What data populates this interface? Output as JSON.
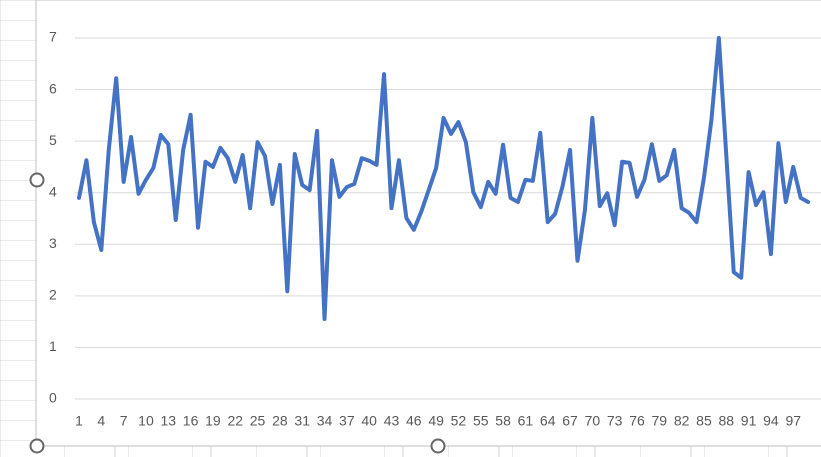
{
  "chart_data": {
    "type": "line",
    "categories": [
      "1",
      null,
      null,
      "4",
      null,
      null,
      "7",
      null,
      null,
      "10",
      null,
      null,
      "13",
      null,
      null,
      "16",
      null,
      null,
      "19",
      null,
      null,
      "22",
      null,
      null,
      "25",
      null,
      null,
      "28",
      null,
      null,
      "31",
      null,
      null,
      "34",
      null,
      null,
      "37",
      null,
      null,
      "40",
      null,
      null,
      "43",
      null,
      null,
      "46",
      null,
      null,
      "49",
      null,
      null,
      "52",
      null,
      null,
      "55",
      null,
      null,
      "58",
      null,
      null,
      "61",
      null,
      null,
      "64",
      null,
      null,
      "67",
      null,
      null,
      "70",
      null,
      null,
      "73",
      null,
      null,
      "76",
      null,
      null,
      "79",
      null,
      null,
      "82",
      null,
      null,
      "85",
      null,
      null,
      "88",
      null,
      null,
      "91",
      null,
      null,
      "94",
      null,
      null,
      "97",
      null,
      null
    ],
    "series": [
      {
        "color": "#4472c4",
        "values": [
          3.9,
          4.63,
          3.43,
          2.89,
          4.83,
          6.22,
          4.21,
          5.08,
          3.98,
          4.25,
          4.48,
          5.12,
          4.94,
          3.47,
          4.83,
          5.51,
          3.32,
          4.6,
          4.5,
          4.87,
          4.67,
          4.21,
          4.73,
          3.7,
          4.98,
          4.71,
          3.78,
          4.54,
          2.09,
          4.75,
          4.15,
          4.05,
          5.2,
          1.55,
          4.63,
          3.92,
          4.11,
          4.17,
          4.67,
          4.62,
          4.54,
          6.3,
          3.7,
          4.63,
          3.51,
          3.28,
          3.63,
          4.05,
          4.48,
          5.45,
          5.14,
          5.37,
          4.98,
          4.01,
          3.72,
          4.21,
          3.98,
          4.93,
          3.9,
          3.82,
          4.25,
          4.23,
          5.16,
          3.43,
          3.59,
          4.13,
          4.83,
          2.68,
          3.66,
          5.45,
          3.74,
          3.99,
          3.37,
          4.6,
          4.58,
          3.92,
          4.25,
          4.94,
          4.23,
          4.34,
          4.83,
          3.7,
          3.61,
          3.43,
          4.29,
          5.41,
          7.0,
          4.73,
          2.46,
          2.35,
          4.4,
          3.76,
          4.01,
          2.81,
          4.96,
          3.82,
          4.5,
          3.9,
          3.82
        ]
      }
    ],
    "ylim": [
      0,
      7
    ],
    "yticks": [
      0,
      1,
      2,
      3,
      4,
      5,
      6,
      7
    ],
    "grid": true
  }
}
